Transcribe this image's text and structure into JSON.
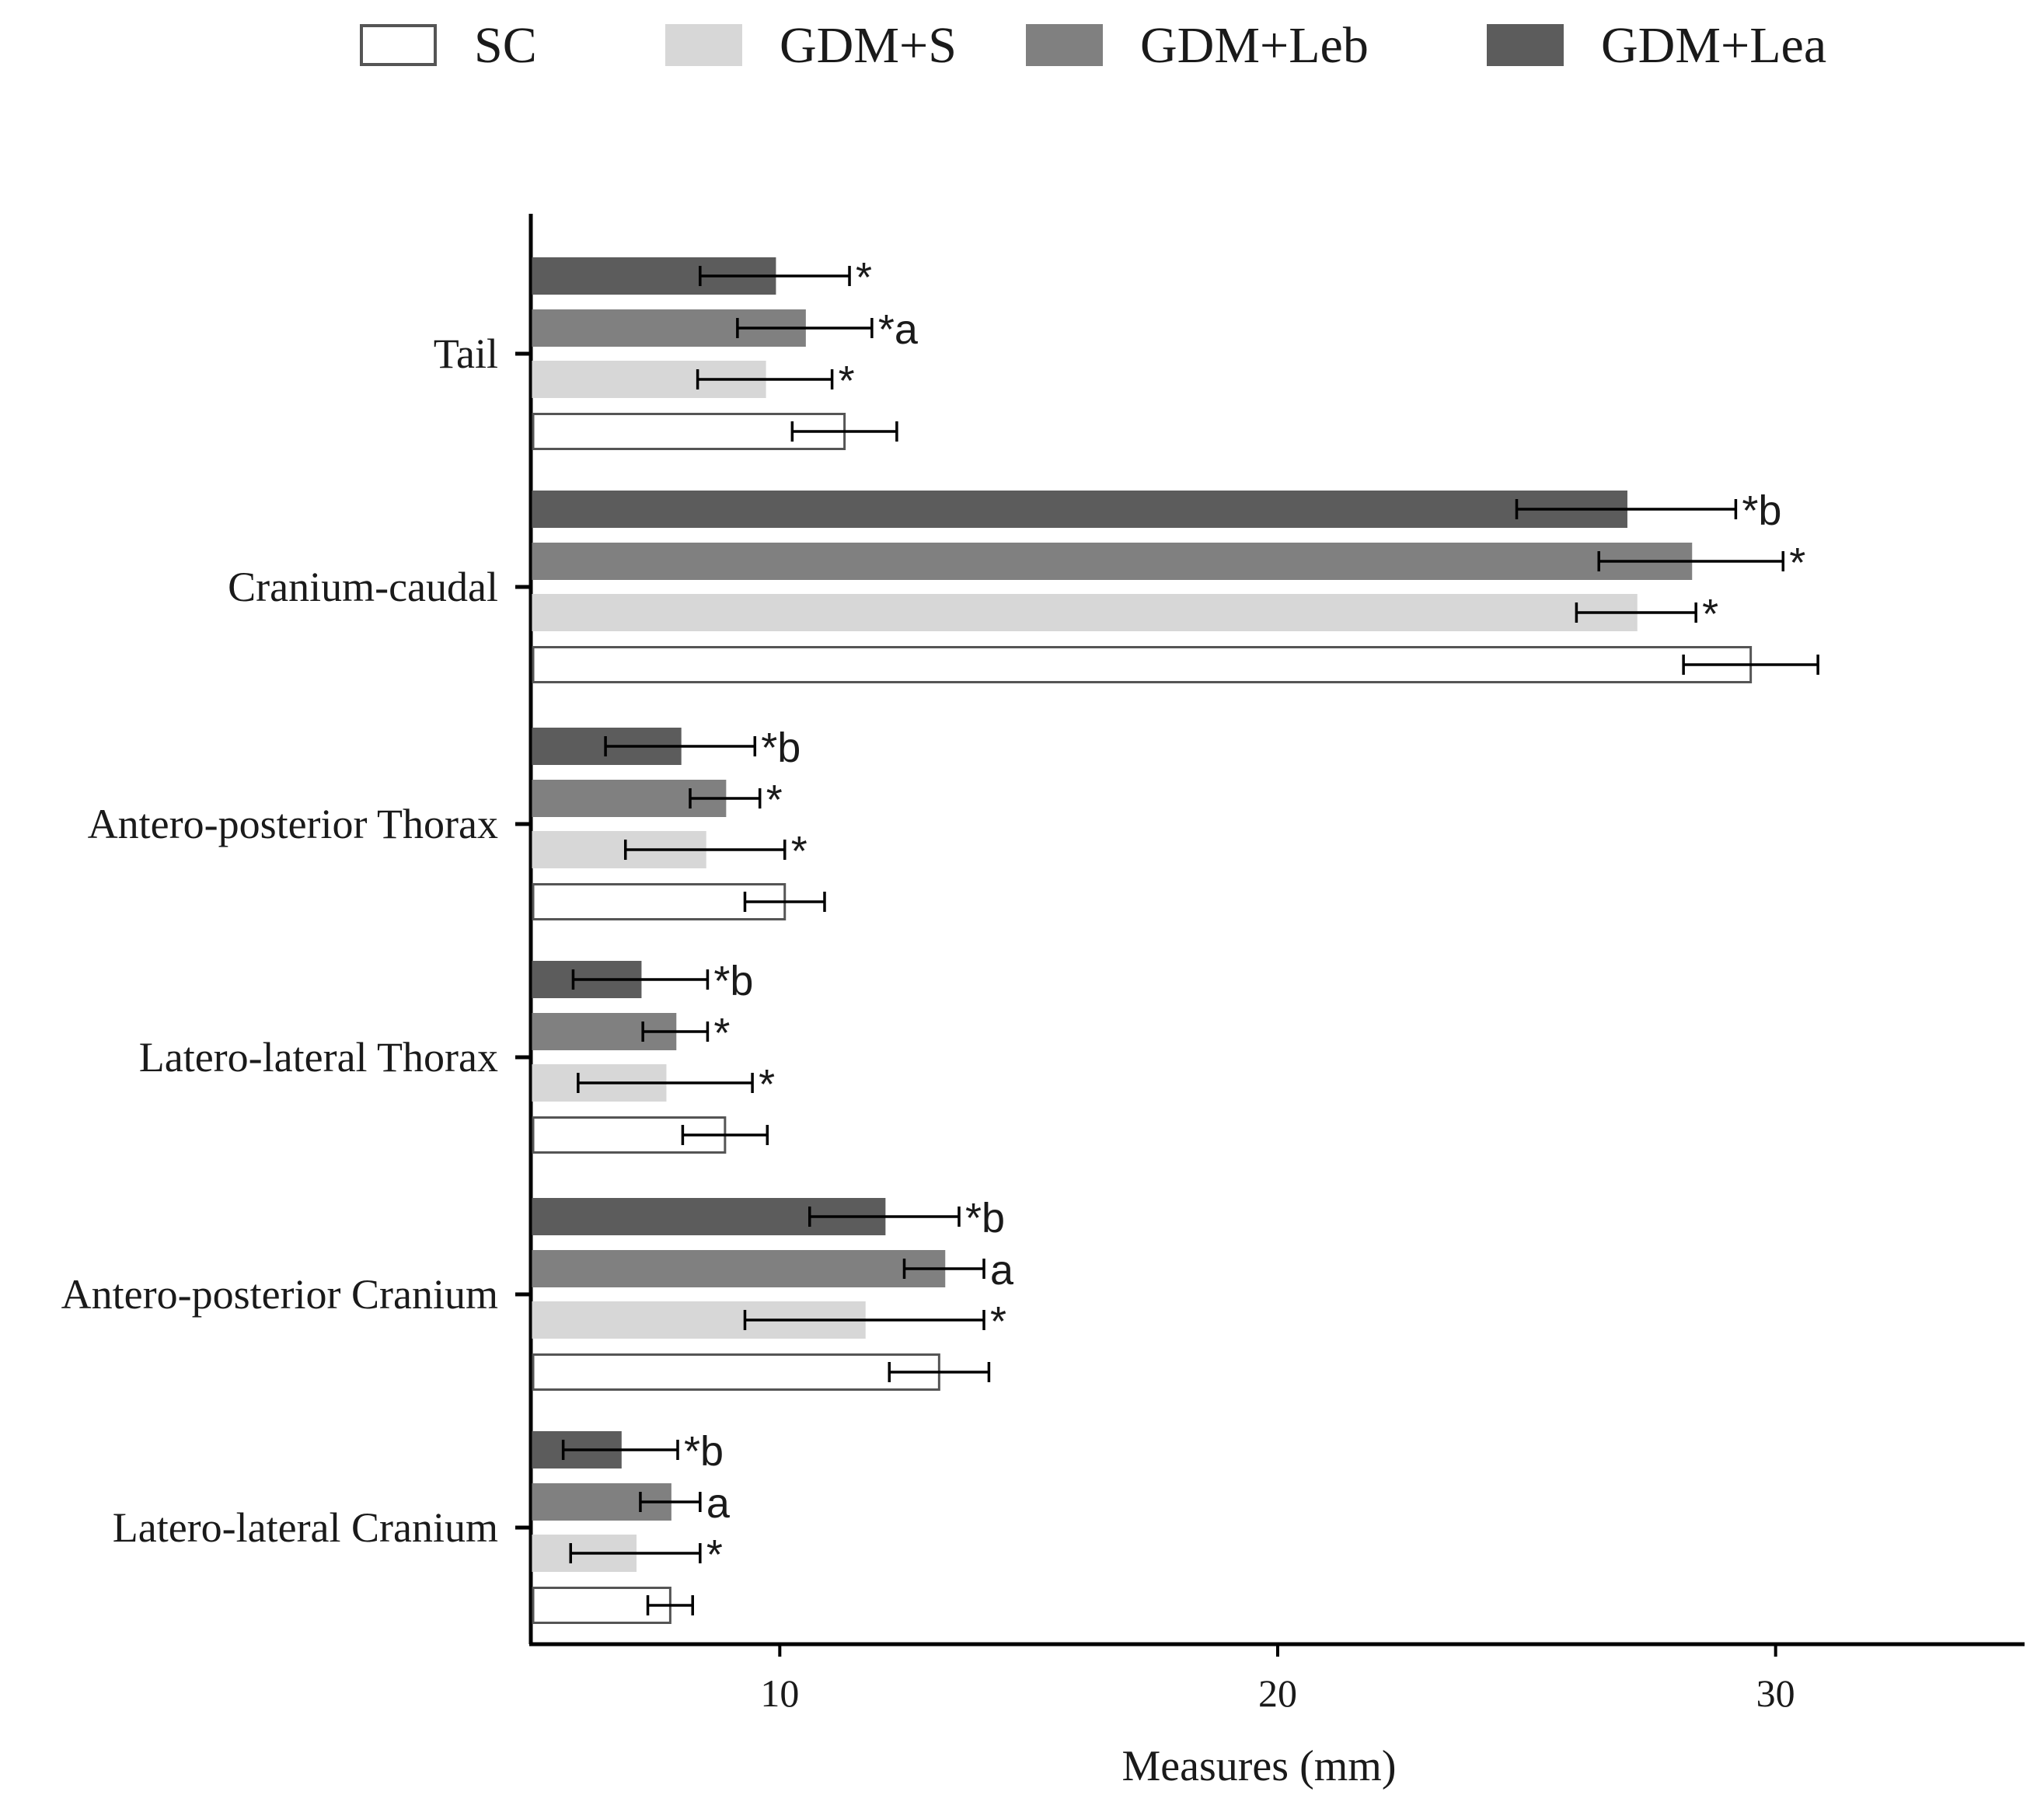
{
  "chart_data": {
    "type": "bar",
    "orientation": "horizontal",
    "title": "",
    "xlabel": "Measures (mm)",
    "ylabel": "",
    "xlim": [
      5,
      35
    ],
    "xticks": [
      10,
      20,
      30
    ],
    "legend_position": "top",
    "categories": [
      "Tail",
      "Cranium-caudal",
      "Antero-posterior Thorax",
      "Latero-lateral Thorax",
      "Antero-posterior Cranium",
      "Latero-lateral Cranium"
    ],
    "series": [
      {
        "name": "SC",
        "color": "#ffffff",
        "stroke": "#555555",
        "values": [
          11.3,
          29.5,
          10.1,
          8.9,
          13.2,
          7.8
        ],
        "errors": [
          1.05,
          1.35,
          0.8,
          0.85,
          1.0,
          0.45
        ],
        "annotations": [
          "",
          "",
          "",
          "",
          "",
          ""
        ]
      },
      {
        "name": "GDM+S",
        "color": "#d7d7d7",
        "stroke": "#d7d7d7",
        "values": [
          9.7,
          27.2,
          8.5,
          7.7,
          11.7,
          7.1
        ],
        "errors": [
          1.35,
          1.2,
          1.6,
          1.75,
          2.4,
          1.3
        ],
        "annotations": [
          "*",
          "*",
          "*",
          "*",
          "*",
          "*"
        ]
      },
      {
        "name": "GDM+Leb",
        "color": "#808080",
        "stroke": "#808080",
        "values": [
          10.5,
          28.3,
          8.9,
          7.9,
          13.3,
          7.8
        ],
        "errors": [
          1.35,
          1.85,
          0.7,
          0.65,
          0.8,
          0.6
        ],
        "annotations": [
          "*a",
          "*",
          "*",
          "*",
          "a",
          "a"
        ]
      },
      {
        "name": "GDM+Lea",
        "color": "#5c5c5c",
        "stroke": "#5c5c5c",
        "values": [
          9.9,
          27.0,
          8.0,
          7.2,
          12.1,
          6.8
        ],
        "errors": [
          1.5,
          2.2,
          1.5,
          1.35,
          1.5,
          1.15
        ],
        "annotations": [
          "*",
          "*b",
          "*b",
          "*b",
          "*b",
          "*b"
        ]
      }
    ]
  }
}
